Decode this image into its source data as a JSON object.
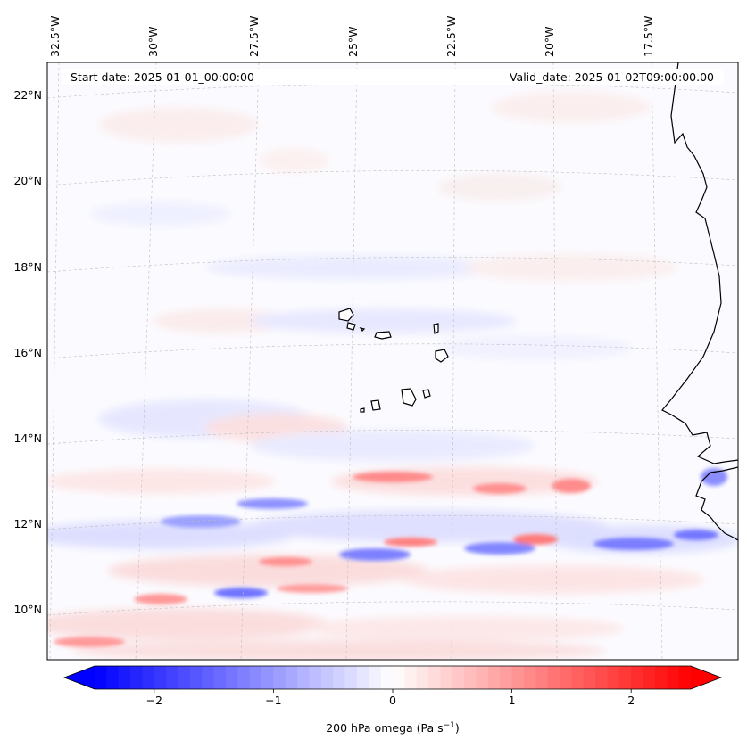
{
  "header": {
    "start_date": "Start date: 2025-01-01_00:00:00",
    "valid_date": "Valid_date: 2025-01-02T09:00:00.00"
  },
  "map": {
    "variable": "200 hPa omega",
    "longitude_labels": [
      "32.5°W",
      "30°W",
      "27.5°W",
      "25°W",
      "22.5°W",
      "20°W",
      "17.5°W"
    ],
    "latitude_labels": [
      "22°N",
      "20°N",
      "18°N",
      "16°N",
      "14°N",
      "12°N",
      "10°N"
    ],
    "features": [
      "Cape Verde islands",
      "West African coastline (Mauritania, Senegal, Gambia, Guinea-Bissau)"
    ]
  },
  "colorbar": {
    "label": "200 hPa omega (Pa s",
    "label_exponent": "−1",
    "label_close": ")",
    "min": -2.5,
    "max": 2.5,
    "ticks": [
      {
        "value": -2,
        "label": "−2"
      },
      {
        "value": -1,
        "label": "−1"
      },
      {
        "value": 0,
        "label": "0"
      },
      {
        "value": 1,
        "label": "1"
      },
      {
        "value": 2,
        "label": "2"
      }
    ],
    "colors": {
      "negative": "#0000ff",
      "zero": "#ffffff",
      "positive": "#ff0000"
    }
  }
}
